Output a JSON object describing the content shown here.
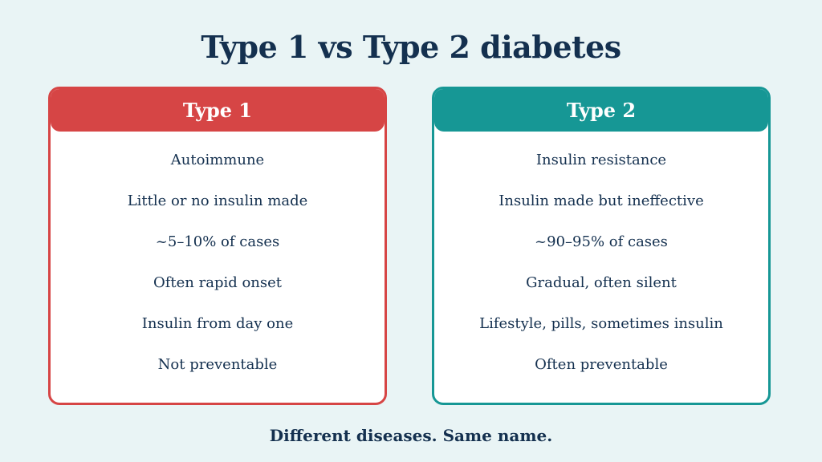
{
  "title": "Type 1 vs Type 2 diabetes",
  "colors": {
    "background": "#e9f4f5",
    "text": "#14304f",
    "type1_accent": "#d64545",
    "type2_accent": "#169795"
  },
  "type1": {
    "heading": "Type 1",
    "items": [
      "Autoimmune",
      "Little or no insulin made",
      "~5–10% of cases",
      "Often rapid onset",
      "Insulin from day one",
      "Not preventable"
    ]
  },
  "type2": {
    "heading": "Type 2",
    "items": [
      "Insulin resistance",
      "Insulin made but ineffective",
      "~90–95% of cases",
      "Gradual, often silent",
      "Lifestyle, pills, sometimes insulin",
      "Often preventable"
    ]
  },
  "footer": "Different diseases. Same name."
}
